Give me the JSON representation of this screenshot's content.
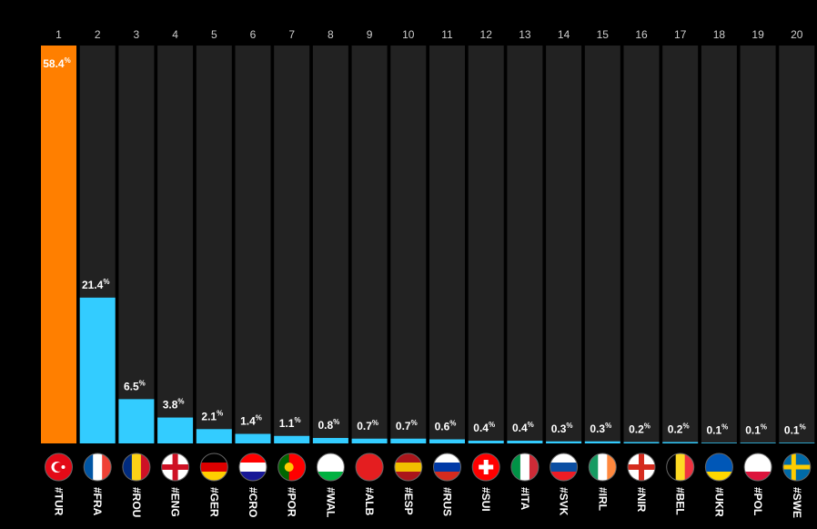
{
  "chart_data": {
    "type": "bar",
    "ranks": [
      1,
      2,
      3,
      4,
      5,
      6,
      7,
      8,
      9,
      10,
      11,
      12,
      13,
      14,
      15,
      16,
      17,
      18,
      19,
      20
    ],
    "categories": [
      "#TUR",
      "#FRA",
      "#ROU",
      "#ENG",
      "#GER",
      "#CRO",
      "#POR",
      "#WAL",
      "#ALB",
      "#ESP",
      "#RUS",
      "#SUI",
      "#ITA",
      "#SVK",
      "#IRL",
      "#NIR",
      "#BEL",
      "#UKR",
      "#POL",
      "#SWE"
    ],
    "values": [
      58.4,
      21.4,
      6.5,
      3.8,
      2.1,
      1.4,
      1.1,
      0.8,
      0.7,
      0.7,
      0.6,
      0.4,
      0.4,
      0.3,
      0.3,
      0.2,
      0.2,
      0.1,
      0.1,
      0.1
    ],
    "value_labels": [
      "58.4%",
      "21.4%",
      "6.5%",
      "3.8%",
      "2.1%",
      "1.4%",
      "1.1%",
      "0.8%",
      "0.7%",
      "0.7%",
      "0.6%",
      "0.4%",
      "0.4%",
      "0.3%",
      "0.3%",
      "0.2%",
      "0.2%",
      "0.1%",
      "0.1%",
      "0.1%"
    ],
    "colors": [
      "#ff7f00",
      "#33ccff",
      "#33ccff",
      "#33ccff",
      "#33ccff",
      "#33ccff",
      "#33ccff",
      "#33ccff",
      "#33ccff",
      "#33ccff",
      "#33ccff",
      "#33ccff",
      "#33ccff",
      "#33ccff",
      "#33ccff",
      "#33ccff",
      "#33ccff",
      "#33ccff",
      "#33ccff",
      "#33ccff"
    ],
    "ylim": [
      0,
      58.4
    ]
  }
}
